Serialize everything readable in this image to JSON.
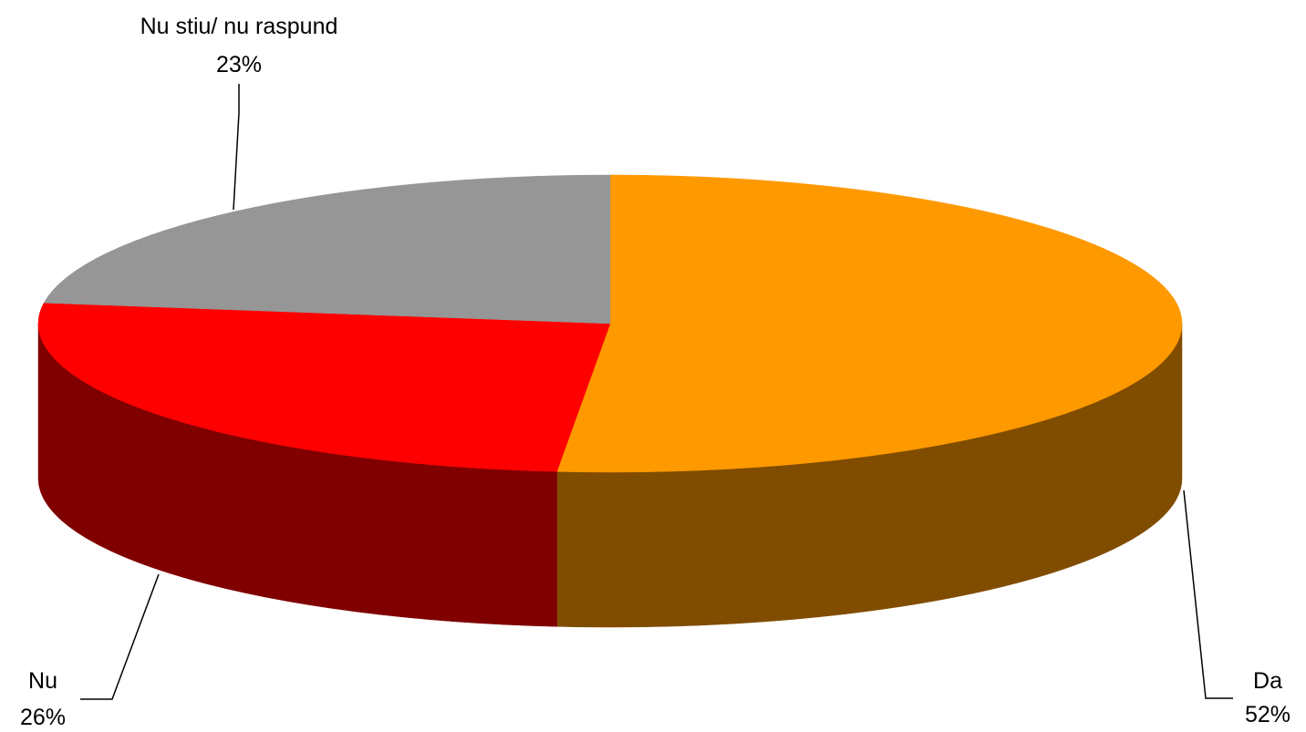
{
  "chart_data": {
    "type": "pie",
    "style": "3d",
    "slices": [
      {
        "label": "Da",
        "value": 52,
        "value_label": "52%",
        "top_color": "#FF9900",
        "side_color": "#804C00"
      },
      {
        "label": "Nu",
        "value": 26,
        "value_label": "26%",
        "top_color": "#FF0000",
        "side_color": "#800000"
      },
      {
        "label": "Nu stiu/ nu raspund",
        "value": 23,
        "value_label": "23%",
        "top_color": "#969696",
        "side_color": "#4B4B4B"
      }
    ],
    "legend": "none"
  }
}
